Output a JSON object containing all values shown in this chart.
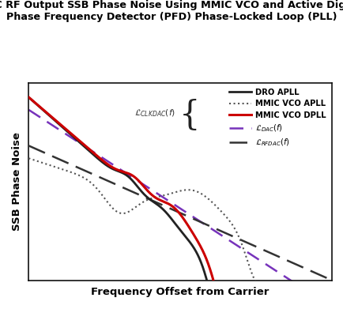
{
  "title": "DAC RF Output SSB Phase Noise Using MMIC VCO and Active Digital\nPhase Frequency Detector (PFD) Phase-Locked Loop (PLL)",
  "xlabel": "Frequency Offset from Carrier",
  "ylabel": "SSB Phase Noise",
  "title_fontsize": 9.2,
  "label_fontsize": 9.5,
  "bg_color": "#ffffff",
  "plot_bg": "#ffffff",
  "line_colors": {
    "dro": "#222222",
    "mmic_apll": "#555555",
    "mmic_dpll": "#cc0000",
    "dac": "#7733bb",
    "rfdac": "#333333"
  }
}
